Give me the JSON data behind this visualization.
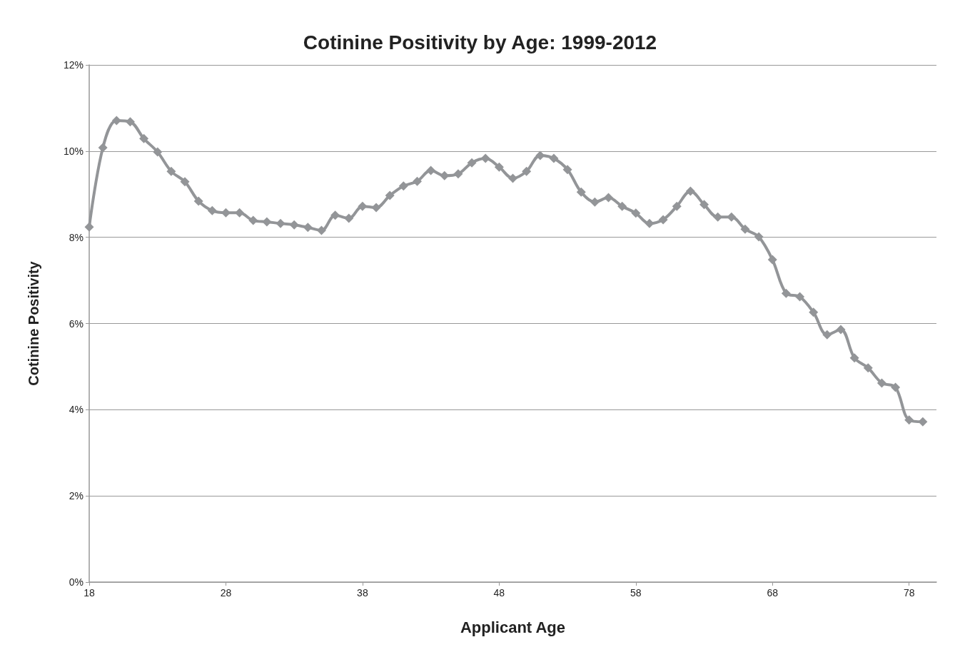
{
  "chart_data": {
    "type": "line",
    "title": "Cotinine Positivity by Age: 1999-2012",
    "xlabel": "Applicant Age",
    "ylabel": "Cotinine Positivity",
    "x": [
      18,
      19,
      20,
      21,
      22,
      23,
      24,
      25,
      26,
      27,
      28,
      29,
      30,
      31,
      32,
      33,
      34,
      35,
      36,
      37,
      38,
      39,
      40,
      41,
      42,
      43,
      44,
      45,
      46,
      47,
      48,
      49,
      50,
      51,
      52,
      53,
      54,
      55,
      56,
      57,
      58,
      59,
      60,
      61,
      62,
      63,
      64,
      65,
      66,
      67,
      68,
      69,
      70,
      71,
      72,
      73,
      74,
      75,
      76,
      77,
      78,
      79
    ],
    "series": [
      {
        "color": "#939598",
        "values": [
          8.24,
          10.08,
          10.71,
          10.68,
          10.29,
          9.98,
          9.53,
          9.29,
          8.84,
          8.62,
          8.57,
          8.57,
          8.39,
          8.36,
          8.32,
          8.29,
          8.23,
          8.16,
          8.51,
          8.44,
          8.72,
          8.69,
          8.97,
          9.19,
          9.3,
          9.55,
          9.43,
          9.47,
          9.73,
          9.83,
          9.63,
          9.37,
          9.53,
          9.9,
          9.83,
          9.57,
          9.05,
          8.82,
          8.92,
          8.72,
          8.56,
          8.32,
          8.41,
          8.72,
          9.07,
          8.76,
          8.47,
          8.47,
          8.19,
          8.01,
          7.48,
          6.7,
          6.62,
          6.26,
          5.74,
          5.86,
          5.2,
          4.97,
          4.62,
          4.52,
          3.76,
          3.72
        ]
      }
    ],
    "xlim": [
      18,
      80
    ],
    "xticks": [
      18,
      28,
      38,
      48,
      58,
      68,
      78
    ],
    "ylim": [
      0,
      12
    ],
    "yticks": [
      {
        "value": 0,
        "label": "0%"
      },
      {
        "value": 2,
        "label": "2%"
      },
      {
        "value": 4,
        "label": "4%"
      },
      {
        "value": 6,
        "label": "6%"
      },
      {
        "value": 8,
        "label": "8%"
      },
      {
        "value": 10,
        "label": "10%"
      },
      {
        "value": 12,
        "label": "12%"
      }
    ],
    "grid": "y",
    "marker": "diamond",
    "line_style": "solid"
  }
}
